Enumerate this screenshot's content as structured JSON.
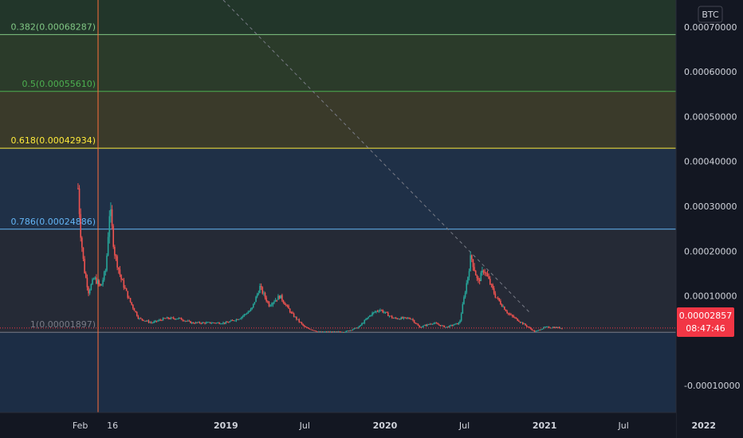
{
  "currency_badge": "BTC",
  "last_price": {
    "value": "0.00002857",
    "countdown": "08:47:46",
    "color": "#f23645"
  },
  "colors": {
    "background": "#131722",
    "axis_bg": "#131722",
    "up": "#26a69a",
    "down": "#ef5350",
    "trendline": "#787b86"
  },
  "fib_levels": [
    {
      "ratio": 0.382,
      "price": 0.00068287,
      "label": "0.382(0.00068287)",
      "color": "#81c784",
      "band": "#22362a"
    },
    {
      "ratio": 0.5,
      "price": 0.0005561,
      "label": "0.5(0.00055610)",
      "color": "#4caf50",
      "band": "#2b3b2a"
    },
    {
      "ratio": 0.618,
      "price": 0.00042934,
      "label": "0.618(0.00042934)",
      "color": "#ffeb3b",
      "band": "#3a3a2a"
    },
    {
      "ratio": 0.786,
      "price": 0.00024886,
      "label": "0.786(0.00024886)",
      "color": "#64b5f6",
      "band": "#1f3047"
    },
    {
      "ratio": 1,
      "price": 1.897e-05,
      "label": "1(0.00001897)",
      "color": "#787b86",
      "band": "#252a36"
    }
  ],
  "chart_data": {
    "type": "line",
    "pair_unit": "BTC",
    "ylim": [
      -0.00016,
      0.00076
    ],
    "y_ticks": [
      {
        "value": 0.0007,
        "label": "0.00070000"
      },
      {
        "value": 0.0006,
        "label": "0.00060000"
      },
      {
        "value": 0.0005,
        "label": "0.00050000"
      },
      {
        "value": 0.0004,
        "label": "0.00040000"
      },
      {
        "value": 0.0003,
        "label": "0.00030000"
      },
      {
        "value": 0.0002,
        "label": "0.00020000"
      },
      {
        "value": 0.0001,
        "label": "0.00010000"
      },
      {
        "value": -0.0001,
        "label": "-0.00010000"
      }
    ],
    "x_ticks": [
      {
        "date": "2018-02-01",
        "label": "Feb",
        "major": false
      },
      {
        "date": "2018-04-16",
        "label": "16",
        "major": false
      },
      {
        "date": "2019-01-01",
        "label": "2019",
        "major": true
      },
      {
        "date": "2019-07-01",
        "label": "Jul",
        "major": false
      },
      {
        "date": "2020-01-01",
        "label": "2020",
        "major": true
      },
      {
        "date": "2020-07-01",
        "label": "Jul",
        "major": false
      },
      {
        "date": "2021-01-01",
        "label": "2021",
        "major": true
      },
      {
        "date": "2021-07-01",
        "label": "Jul",
        "major": false
      },
      {
        "date": "2022-01-01",
        "label": "2022",
        "major": true
      }
    ],
    "series": [
      {
        "values": [
          [
            "2018-01-27",
            0.00034
          ],
          [
            "2018-02-02",
            0.00024
          ],
          [
            "2018-02-10",
            0.00016
          ],
          [
            "2018-02-20",
            0.00011
          ],
          [
            "2018-03-05",
            0.00014
          ],
          [
            "2018-03-20",
            0.00012
          ],
          [
            "2018-04-01",
            0.00016
          ],
          [
            "2018-04-10",
            0.0003
          ],
          [
            "2018-04-20",
            0.0002
          ],
          [
            "2018-05-05",
            0.00014
          ],
          [
            "2018-05-25",
            9e-05
          ],
          [
            "2018-06-15",
            5e-05
          ],
          [
            "2018-07-15",
            4e-05
          ],
          [
            "2018-08-15",
            5e-05
          ],
          [
            "2018-09-15",
            5e-05
          ],
          [
            "2018-10-15",
            4e-05
          ],
          [
            "2018-11-20",
            4e-05
          ],
          [
            "2019-01-01",
            4e-05
          ],
          [
            "2019-02-01",
            5e-05
          ],
          [
            "2019-03-01",
            7e-05
          ],
          [
            "2019-03-20",
            0.00012
          ],
          [
            "2019-04-10",
            8e-05
          ],
          [
            "2019-05-05",
            0.0001
          ],
          [
            "2019-06-01",
            6e-05
          ],
          [
            "2019-07-01",
            3e-05
          ],
          [
            "2019-08-01",
            2e-05
          ],
          [
            "2019-09-01",
            2e-05
          ],
          [
            "2019-10-01",
            2e-05
          ],
          [
            "2019-11-01",
            3e-05
          ],
          [
            "2019-12-01",
            6e-05
          ],
          [
            "2019-12-20",
            7e-05
          ],
          [
            "2020-01-20",
            5e-05
          ],
          [
            "2020-03-01",
            5e-05
          ],
          [
            "2020-03-20",
            3e-05
          ],
          [
            "2020-04-20",
            4e-05
          ],
          [
            "2020-05-20",
            3e-05
          ],
          [
            "2020-06-20",
            4e-05
          ],
          [
            "2020-07-10",
            0.00015
          ],
          [
            "2020-07-16",
            0.00019
          ],
          [
            "2020-08-01",
            0.00013
          ],
          [
            "2020-08-15",
            0.00016
          ],
          [
            "2020-09-10",
            0.0001
          ],
          [
            "2020-10-10",
            6e-05
          ],
          [
            "2020-11-10",
            4e-05
          ],
          [
            "2020-12-10",
            2e-05
          ],
          [
            "2021-01-01",
            3e-05
          ],
          [
            "2021-01-20",
            3e-05
          ],
          [
            "2021-02-10",
            2.857e-05
          ]
        ]
      }
    ]
  }
}
